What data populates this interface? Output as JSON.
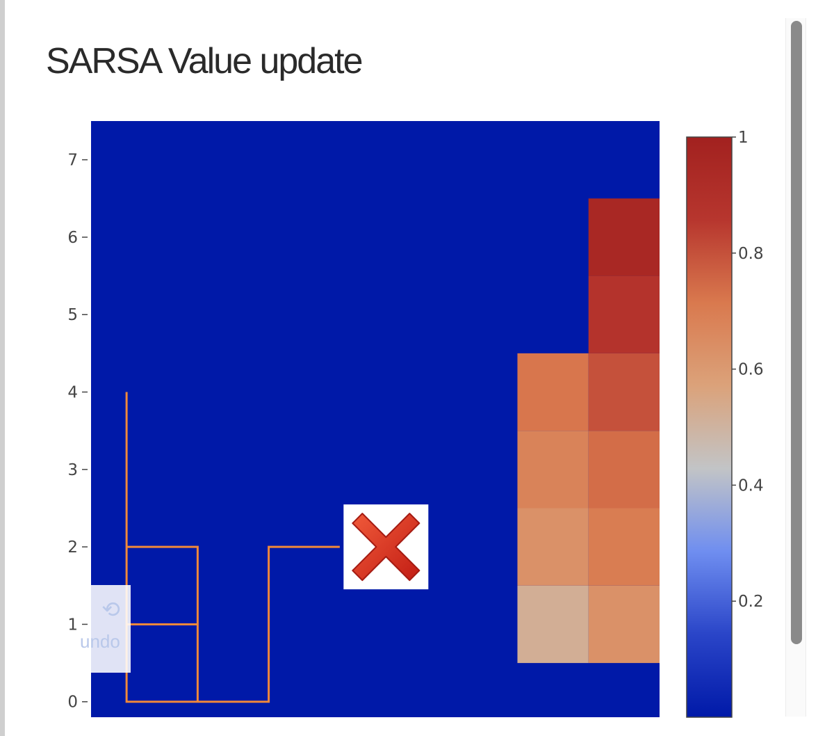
{
  "title": "SARSA Value update",
  "undo": {
    "label": "undo",
    "icon": "undo-arrow-icon"
  },
  "colors": {
    "background": "#0019A8",
    "path": "#F0883A",
    "colorscale": [
      "#0019A8",
      "#2A45C8",
      "#6F8EF0",
      "#C2C4C6",
      "#DBA27A",
      "#D9794E",
      "#B7362E",
      "#A2211F"
    ]
  },
  "chart_data": {
    "type": "heatmap",
    "title": "SARSA Value update",
    "xlabel": "",
    "ylabel": "",
    "grid": false,
    "legend": "none",
    "x_range": [
      -0.5,
      7.5
    ],
    "y_range": [
      -0.2,
      7.5
    ],
    "y_ticks": [
      0,
      1,
      2,
      3,
      4,
      5,
      6,
      7
    ],
    "cells": [
      {
        "x": 6,
        "y": 1,
        "value": 0.52
      },
      {
        "x": 6,
        "y": 2,
        "value": 0.63
      },
      {
        "x": 6,
        "y": 3,
        "value": 0.68
      },
      {
        "x": 6,
        "y": 4,
        "value": 0.72
      },
      {
        "x": 7,
        "y": 1,
        "value": 0.63
      },
      {
        "x": 7,
        "y": 2,
        "value": 0.7
      },
      {
        "x": 7,
        "y": 3,
        "value": 0.74
      },
      {
        "x": 7,
        "y": 4,
        "value": 0.8
      },
      {
        "x": 7,
        "y": 5,
        "value": 0.88
      },
      {
        "x": 7,
        "y": 6,
        "value": 0.95
      }
    ],
    "colorbar": {
      "range": [
        0,
        1
      ],
      "ticks": [
        0.2,
        0.4,
        0.6,
        0.8,
        1
      ],
      "tick_labels": [
        "0.2",
        "0.4",
        "0.6",
        "0.8",
        "1"
      ]
    },
    "path": {
      "name": "agent-path",
      "points": [
        [
          0,
          4
        ],
        [
          0,
          0
        ],
        [
          2,
          0
        ],
        [
          2,
          2
        ],
        [
          3,
          2
        ]
      ],
      "branches": [
        [
          [
            0,
            2
          ],
          [
            1,
            2
          ],
          [
            1,
            0
          ]
        ],
        [
          [
            0,
            1
          ],
          [
            1,
            1
          ]
        ]
      ]
    },
    "marker": {
      "x": 3.65,
      "y": 2,
      "icon": "red-x-icon"
    }
  }
}
